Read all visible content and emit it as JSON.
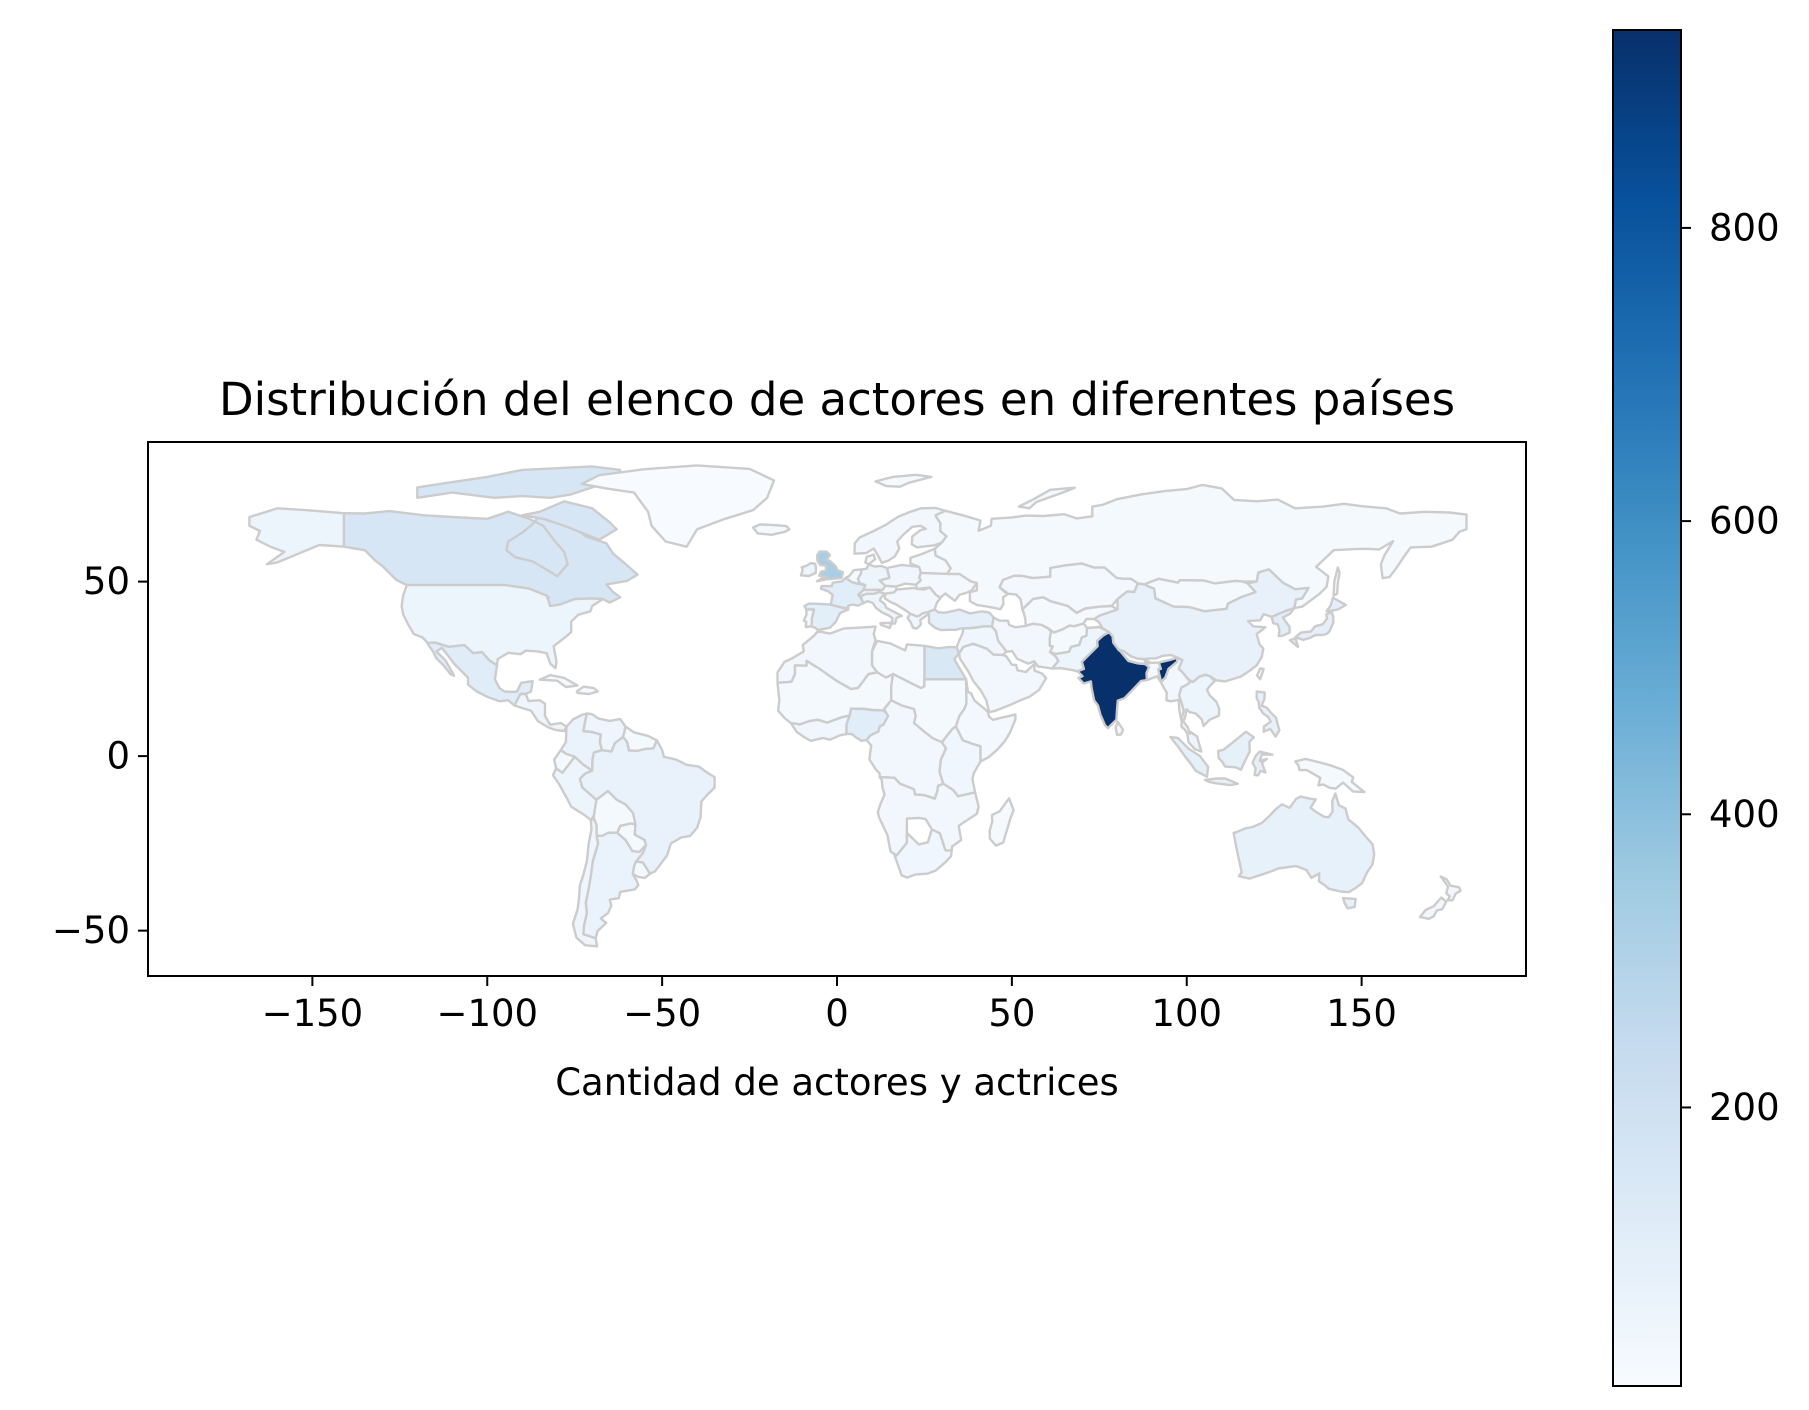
{
  "chart_data": {
    "type": "choropleth",
    "title": "Distribución del elenco de actores en diferentes países",
    "xlabel": "Cantidad de actores y actrices",
    "ylabel": "",
    "xlim": [
      -197,
      197
    ],
    "ylim": [
      -63,
      90
    ],
    "xticks": [
      -150,
      -100,
      -50,
      0,
      50,
      100,
      150
    ],
    "yticks": [
      -50,
      0,
      50
    ],
    "colorbar": {
      "colormap": "Blues",
      "range": [
        10,
        935
      ],
      "ticks": [
        200,
        400,
        600,
        800
      ]
    },
    "regions": [
      {
        "name": "India",
        "value": 935
      },
      {
        "name": "United Kingdom",
        "value": 330
      },
      {
        "name": "Canada",
        "value": 160
      },
      {
        "name": "Egypt",
        "value": 150
      },
      {
        "name": "Mexico",
        "value": 115
      },
      {
        "name": "France",
        "value": 110
      },
      {
        "name": "Spain",
        "value": 105
      },
      {
        "name": "Turkey",
        "value": 100
      },
      {
        "name": "Nigeria",
        "value": 110
      },
      {
        "name": "Japan",
        "value": 95
      },
      {
        "name": "South Korea",
        "value": 110
      },
      {
        "name": "Indonesia",
        "value": 90
      },
      {
        "name": "Philippines",
        "value": 80
      },
      {
        "name": "Australia",
        "value": 85
      },
      {
        "name": "China",
        "value": 80
      },
      {
        "name": "Brazil",
        "value": 75
      },
      {
        "name": "Argentina",
        "value": 70
      },
      {
        "name": "Colombia",
        "value": 70
      },
      {
        "name": "Germany",
        "value": 60
      },
      {
        "name": "Italy",
        "value": 55
      },
      {
        "name": "South Africa",
        "value": 45
      },
      {
        "name": "Russia",
        "value": 25
      },
      {
        "name": "Greenland",
        "value": 10
      }
    ]
  },
  "formatted": {
    "xticks": [
      "−150",
      "−100",
      "−50",
      "0",
      "50",
      "100",
      "150"
    ],
    "yticks": [
      "−50",
      "0",
      "50"
    ],
    "cbar_ticks": [
      "200",
      "400",
      "600",
      "800"
    ]
  }
}
